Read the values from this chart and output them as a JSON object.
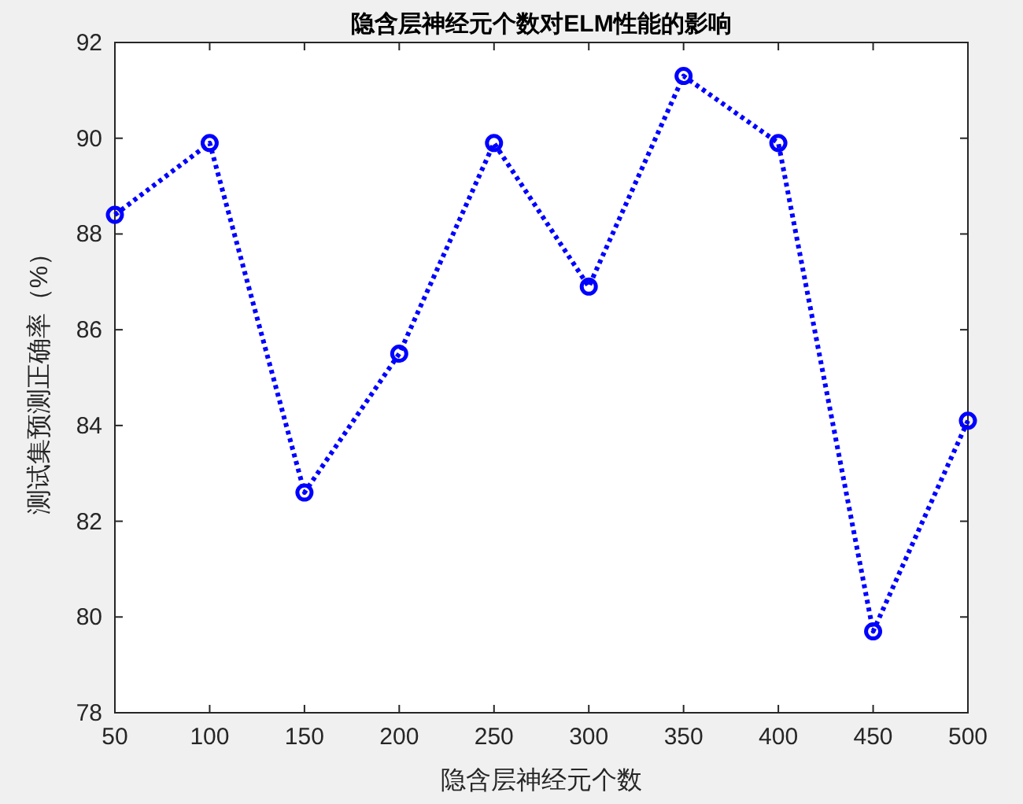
{
  "chart_data": {
    "type": "line",
    "title": "隐含层神经元个数对ELM性能的影响",
    "xlabel": "隐含层神经元个数",
    "ylabel": "测试集预测正确率（%）",
    "x": [
      50,
      100,
      150,
      200,
      250,
      300,
      350,
      400,
      450,
      500
    ],
    "series": [
      {
        "color": "#0000ff",
        "values": [
          88.4,
          89.9,
          82.6,
          85.5,
          89.9,
          86.9,
          91.3,
          89.9,
          79.7,
          84.1
        ]
      }
    ],
    "xlim": [
      50,
      500
    ],
    "xticks": [
      50,
      100,
      150,
      200,
      250,
      300,
      350,
      400,
      450,
      500
    ],
    "ylim": [
      78,
      92
    ],
    "yticks": [
      78,
      80,
      82,
      84,
      86,
      88,
      90,
      92
    ],
    "grid": false,
    "marker": "circle",
    "line_style": "dotted"
  }
}
